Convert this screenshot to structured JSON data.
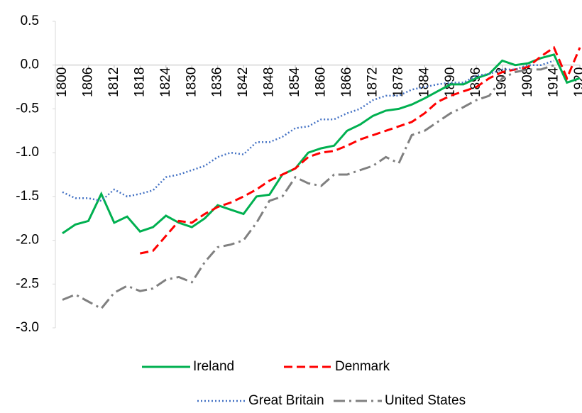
{
  "chart_data": {
    "type": "line",
    "x": [
      1800,
      1803,
      1806,
      1809,
      1812,
      1815,
      1818,
      1821,
      1824,
      1827,
      1830,
      1833,
      1836,
      1839,
      1842,
      1845,
      1848,
      1851,
      1854,
      1857,
      1860,
      1863,
      1866,
      1869,
      1872,
      1875,
      1878,
      1881,
      1884,
      1887,
      1890,
      1893,
      1896,
      1899,
      1902,
      1905,
      1908,
      1911,
      1914,
      1917,
      1920
    ],
    "series": [
      {
        "name": "Ireland",
        "color": "#00b050",
        "values": [
          -1.92,
          -1.82,
          -1.78,
          -1.47,
          -1.8,
          -1.73,
          -1.9,
          -1.85,
          -1.72,
          -1.8,
          -1.85,
          -1.75,
          -1.6,
          -1.65,
          -1.7,
          -1.5,
          -1.48,
          -1.25,
          -1.18,
          -1.0,
          -0.95,
          -0.92,
          -0.75,
          -0.68,
          -0.58,
          -0.52,
          -0.5,
          -0.45,
          -0.38,
          -0.3,
          -0.22,
          -0.22,
          -0.15,
          -0.1,
          0.05,
          0.0,
          0.02,
          0.08,
          0.12,
          -0.2,
          -0.15
        ]
      },
      {
        "name": "Denmark",
        "color": "#ff0000",
        "values": [
          null,
          null,
          null,
          null,
          null,
          null,
          -2.15,
          -2.12,
          -1.95,
          -1.78,
          -1.8,
          -1.7,
          -1.62,
          -1.57,
          -1.5,
          -1.42,
          -1.32,
          -1.25,
          -1.18,
          -1.05,
          -1.0,
          -0.98,
          -0.92,
          -0.85,
          -0.8,
          -0.75,
          -0.7,
          -0.65,
          -0.55,
          -0.42,
          -0.35,
          -0.3,
          -0.25,
          -0.15,
          -0.08,
          -0.05,
          -0.02,
          0.1,
          0.2,
          -0.15,
          0.2
        ]
      },
      {
        "name": "Great Britain",
        "color": "#4472c4",
        "values": [
          -1.45,
          -1.52,
          -1.52,
          -1.55,
          -1.42,
          -1.5,
          -1.47,
          -1.43,
          -1.28,
          -1.25,
          -1.2,
          -1.15,
          -1.05,
          -1.0,
          -1.02,
          -0.88,
          -0.88,
          -0.82,
          -0.72,
          -0.7,
          -0.62,
          -0.62,
          -0.55,
          -0.5,
          -0.4,
          -0.35,
          -0.35,
          -0.28,
          -0.25,
          -0.22,
          -0.2,
          -0.2,
          -0.12,
          -0.1,
          -0.05,
          -0.05,
          0.0,
          0.0,
          0.05,
          null,
          null
        ]
      },
      {
        "name": "United States",
        "color": "#808080",
        "values": [
          -2.68,
          -2.62,
          -2.7,
          -2.78,
          -2.6,
          -2.52,
          -2.58,
          -2.55,
          -2.45,
          -2.42,
          -2.48,
          -2.25,
          -2.08,
          -2.05,
          -2.0,
          -1.8,
          -1.55,
          -1.5,
          -1.28,
          -1.35,
          -1.38,
          -1.25,
          -1.25,
          -1.2,
          -1.15,
          -1.05,
          -1.12,
          -0.8,
          -0.75,
          -0.65,
          -0.55,
          -0.48,
          -0.4,
          -0.35,
          -0.15,
          -0.08,
          -0.05,
          -0.05,
          0.0,
          null,
          null
        ]
      }
    ],
    "xlim": [
      1800,
      1920
    ],
    "xticks": [
      1800,
      1806,
      1812,
      1818,
      1824,
      1830,
      1836,
      1842,
      1848,
      1854,
      1860,
      1866,
      1872,
      1878,
      1884,
      1890,
      1896,
      1902,
      1908,
      1914,
      1920
    ],
    "ylim": [
      -3.0,
      0.5
    ],
    "yticks": [
      0.5,
      {
        "value": 0,
        "label": "0.0"
      },
      -0.5,
      {
        "value": -1,
        "label": "-1.0"
      },
      -1.5,
      {
        "value": -2,
        "label": "-2.0"
      },
      -2.5,
      {
        "value": -3,
        "label": "-3.0"
      }
    ],
    "grid": false
  }
}
